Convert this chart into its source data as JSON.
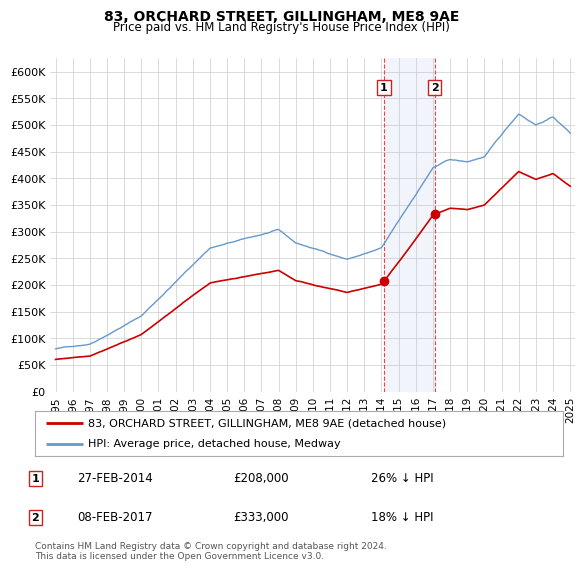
{
  "title": "83, ORCHARD STREET, GILLINGHAM, ME8 9AE",
  "subtitle": "Price paid vs. HM Land Registry's House Price Index (HPI)",
  "ylim": [
    0,
    620000
  ],
  "hpi_color": "#6699cc",
  "price_color": "#cc0000",
  "transaction1_date": 2014.15,
  "transaction1_price": 208000,
  "transaction2_date": 2017.1,
  "transaction2_price": 333000,
  "legend1": "83, ORCHARD STREET, GILLINGHAM, ME8 9AE (detached house)",
  "legend2": "HPI: Average price, detached house, Medway",
  "note1_date": "27-FEB-2014",
  "note1_price": "£208,000",
  "note1_pct": "26% ↓ HPI",
  "note2_date": "08-FEB-2017",
  "note2_price": "£333,000",
  "note2_pct": "18% ↓ HPI",
  "footer": "Contains HM Land Registry data © Crown copyright and database right 2024.\nThis data is licensed under the Open Government Licence v3.0.",
  "background_color": "#ffffff",
  "grid_color": "#cccccc"
}
